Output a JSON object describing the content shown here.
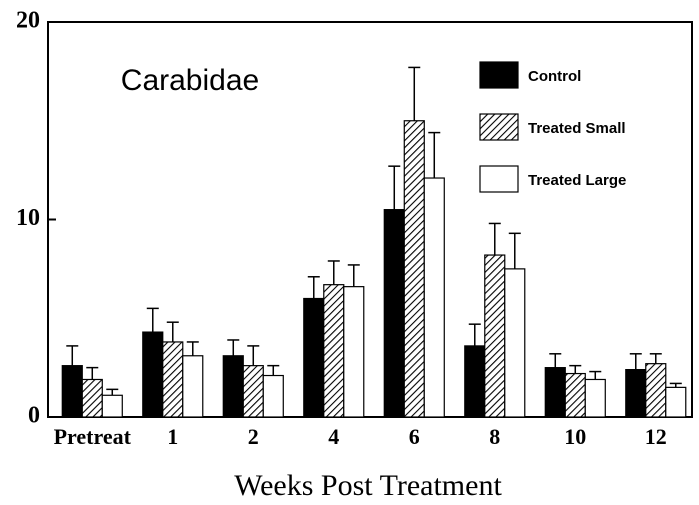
{
  "chart_data": {
    "type": "bar",
    "title": "Carabidae",
    "xlabel": "Weeks Post Treatment",
    "categories": [
      "Pretreat",
      "1",
      "2",
      "4",
      "6",
      "8",
      "10",
      "12"
    ],
    "series": [
      {
        "name": "Control",
        "color": "#000000",
        "hatch": false,
        "values": [
          2.6,
          4.3,
          3.1,
          6.0,
          10.5,
          3.6,
          2.5,
          2.4
        ],
        "errors": [
          1.0,
          1.2,
          0.8,
          1.1,
          2.2,
          1.1,
          0.7,
          0.8
        ]
      },
      {
        "name": "Treated Small",
        "color": "#000000",
        "hatch": true,
        "values": [
          1.9,
          3.8,
          2.6,
          6.7,
          15.0,
          8.2,
          2.2,
          2.7
        ],
        "errors": [
          0.6,
          1.0,
          1.0,
          1.2,
          2.7,
          1.6,
          0.4,
          0.5
        ]
      },
      {
        "name": "Treated Large",
        "color": "#ffffff",
        "hatch": false,
        "values": [
          1.1,
          3.1,
          2.1,
          6.6,
          12.1,
          7.5,
          1.9,
          1.5
        ],
        "errors": [
          0.3,
          0.7,
          0.5,
          1.1,
          2.3,
          1.8,
          0.4,
          0.2
        ]
      }
    ],
    "ylim": [
      0,
      20
    ],
    "yticks": [
      0,
      10,
      20
    ],
    "legend": "upper right",
    "grid": false
  }
}
